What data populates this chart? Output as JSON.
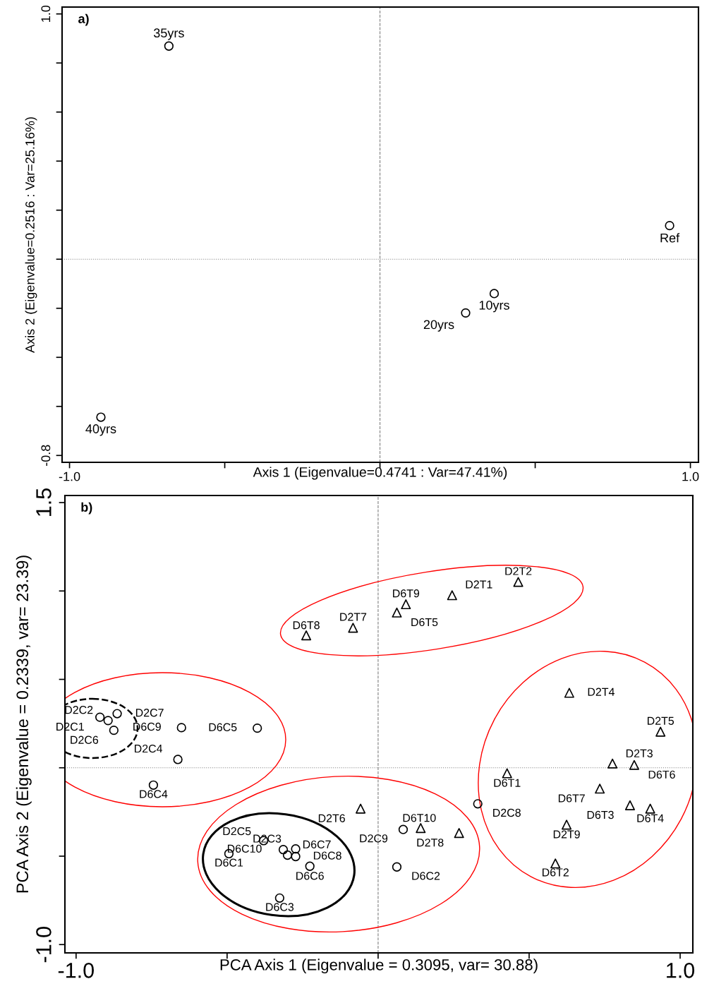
{
  "chart_data": [
    {
      "type": "scatter",
      "title": "a)",
      "xlabel": "Axis 1 (Eigenvalue=0.4741 : Var=47.41%)",
      "ylabel": "Axis 2 (Eigenvalue=0.2516 : Var=25.16%)",
      "xlim": [
        -1.024,
        1.026
      ],
      "ylim": [
        -0.828,
        1.028
      ],
      "xticks": [
        {
          "value": -1,
          "label": "-1.0"
        },
        {
          "value": -0.5,
          "label": null
        },
        {
          "value": 0,
          "label": null
        },
        {
          "value": 0.5,
          "label": null
        },
        {
          "value": 1,
          "label": "1.0"
        }
      ],
      "yticks": [
        {
          "value": -0.8,
          "label": "-0.8"
        },
        {
          "value": -0.6,
          "label": null
        },
        {
          "value": -0.4,
          "label": null
        },
        {
          "value": -0.2,
          "label": null
        },
        {
          "value": 0,
          "label": null
        },
        {
          "value": 0.2,
          "label": null
        },
        {
          "value": 0.4,
          "label": null
        },
        {
          "value": 0.6,
          "label": null
        },
        {
          "value": 0.8,
          "label": null
        },
        {
          "value": 1.0,
          "label": "1.0"
        }
      ],
      "series": [
        {
          "color": "#000000",
          "marker": "circle",
          "x": [
            -0.68,
            0.933,
            0.368,
            0.276,
            -0.899
          ],
          "values": [
            0.869,
            0.137,
            -0.14,
            -0.219,
            -0.644
          ]
        }
      ],
      "annotations": [
        {
          "text": "35yrs",
          "x": -0.68,
          "y": 0.869
        },
        {
          "text": "Ref",
          "x": 0.933,
          "y": 0.137
        },
        {
          "text": "10yrs",
          "x": 0.368,
          "y": -0.14
        },
        {
          "text": "20yrs",
          "x": 0.276,
          "y": -0.219
        },
        {
          "text": "40yrs",
          "x": -0.899,
          "y": -0.644
        }
      ],
      "ref_lines": [
        {
          "axis": "x",
          "value": 0,
          "color": "#808080",
          "line_style": "dashed"
        },
        {
          "axis": "y",
          "value": 0,
          "color": "#808080",
          "line_style": "dotted"
        }
      ]
    },
    {
      "type": "scatter",
      "title": "b)",
      "xlabel": "PCA Axis 1 (Eigenvalue = 0.3095, var= 30.88)",
      "ylabel": "PCA Axis 2 (Eigenvalue = 0.2339, var= 23.39)",
      "xlim": [
        -1.037,
        1.042
      ],
      "ylim": [
        -1.047,
        1.54
      ],
      "xticks": [
        {
          "value": -1,
          "label": "-1.0"
        },
        {
          "value": -0.5,
          "label": null
        },
        {
          "value": 0,
          "label": null
        },
        {
          "value": 0.5,
          "label": null
        },
        {
          "value": 1,
          "label": "1.0"
        }
      ],
      "yticks": [
        {
          "value": -1,
          "label": "-1.0"
        },
        {
          "value": -0.5,
          "label": null
        },
        {
          "value": 0,
          "label": null
        },
        {
          "value": 0.5,
          "label": null
        },
        {
          "value": 1.0,
          "label": null
        },
        {
          "value": 1.5,
          "label": "1.5"
        }
      ],
      "series": [
        {
          "color": "#000000",
          "marker": "triangle",
          "x": [
            0.464,
            0.245,
            0.092,
            0.062,
            -0.083,
            -0.238,
            0.633,
            0.935,
            0.776,
            0.848,
            0.427,
            0.734,
            0.834,
            0.901,
            0.624,
            0.587,
            -0.058,
            0.141,
            0.268
          ],
          "values": [
            1.051,
            0.976,
            0.925,
            0.878,
            0.792,
            0.749,
            0.424,
            0.204,
            0.024,
            0.016,
            -0.031,
            -0.118,
            -0.212,
            -0.231,
            -0.322,
            -0.541,
            -0.231,
            -0.341,
            -0.369
          ]
        },
        {
          "color": "#000000",
          "marker": "circle",
          "x": [
            -0.921,
            -0.894,
            -0.864,
            -0.875,
            -0.651,
            -0.4,
            -0.663,
            -0.744,
            -0.494,
            -0.379,
            -0.314,
            -0.3,
            -0.273,
            -0.273,
            -0.226,
            -0.326,
            0.083,
            0.062,
            0.33
          ],
          "values": [
            0.286,
            0.267,
            0.306,
            0.212,
            0.227,
            0.224,
            0.047,
            -0.098,
            -0.486,
            -0.412,
            -0.463,
            -0.494,
            -0.459,
            -0.502,
            -0.557,
            -0.737,
            -0.349,
            -0.561,
            -0.204
          ]
        }
      ],
      "annotations": [
        {
          "text": "D2T2",
          "x": 0.464,
          "y": 1.051
        },
        {
          "text": "D2T1",
          "x": 0.245,
          "y": 0.976
        },
        {
          "text": "D6T9",
          "x": 0.092,
          "y": 0.925
        },
        {
          "text": "D6T5",
          "x": 0.062,
          "y": 0.878
        },
        {
          "text": "D2T7",
          "x": -0.083,
          "y": 0.792
        },
        {
          "text": "D6T8",
          "x": -0.238,
          "y": 0.749
        },
        {
          "text": "D2T4",
          "x": 0.633,
          "y": 0.424
        },
        {
          "text": "D2T5",
          "x": 0.935,
          "y": 0.204
        },
        {
          "text": "D2T3",
          "x": 0.776,
          "y": 0.024
        },
        {
          "text": "D6T6",
          "x": 0.848,
          "y": 0.016
        },
        {
          "text": "D6T1",
          "x": 0.427,
          "y": -0.031
        },
        {
          "text": "D6T7",
          "x": 0.734,
          "y": -0.118
        },
        {
          "text": "D6T3",
          "x": 0.834,
          "y": -0.212
        },
        {
          "text": "D6T4",
          "x": 0.901,
          "y": -0.231
        },
        {
          "text": "D2T9",
          "x": 0.624,
          "y": -0.322
        },
        {
          "text": "D6T2",
          "x": 0.587,
          "y": -0.541
        },
        {
          "text": "D2T6",
          "x": -0.058,
          "y": -0.231
        },
        {
          "text": "D6T10",
          "x": 0.141,
          "y": -0.341
        },
        {
          "text": "D2T8",
          "x": 0.268,
          "y": -0.369
        },
        {
          "text": "D2C2",
          "x": -0.921,
          "y": 0.286
        },
        {
          "text": "D2C1",
          "x": -0.894,
          "y": 0.267
        },
        {
          "text": "D2C7",
          "x": -0.864,
          "y": 0.306
        },
        {
          "text": "D2C6",
          "x": -0.875,
          "y": 0.212
        },
        {
          "text": "D6C9",
          "x": -0.651,
          "y": 0.227
        },
        {
          "text": "D6C5",
          "x": -0.4,
          "y": 0.224
        },
        {
          "text": "D2C4",
          "x": -0.663,
          "y": 0.047
        },
        {
          "text": "D6C4",
          "x": -0.744,
          "y": -0.098
        },
        {
          "text": "D6C1",
          "x": -0.494,
          "y": -0.486
        },
        {
          "text": "D2C3",
          "x": -0.3,
          "y": -0.494
        },
        {
          "text": "D6C10",
          "x": -0.314,
          "y": -0.463
        },
        {
          "text": "D2C5",
          "x": -0.379,
          "y": -0.412
        },
        {
          "text": "D6C7",
          "x": -0.273,
          "y": -0.459
        },
        {
          "text": "D6C8",
          "x": -0.273,
          "y": -0.502
        },
        {
          "text": "D6C6",
          "x": -0.226,
          "y": -0.557
        },
        {
          "text": "D6C3",
          "x": -0.326,
          "y": -0.737
        },
        {
          "text": "D2C9",
          "x": 0.083,
          "y": -0.349
        },
        {
          "text": "D6C2",
          "x": 0.062,
          "y": -0.561
        },
        {
          "text": "D2C8",
          "x": 0.33,
          "y": -0.204
        }
      ],
      "ref_lines": [
        {
          "axis": "x",
          "value": 0,
          "color": "#808080",
          "line_style": "dashed"
        },
        {
          "axis": "y",
          "value": 0,
          "color": "#808080",
          "line_style": "dotted"
        }
      ]
    }
  ]
}
